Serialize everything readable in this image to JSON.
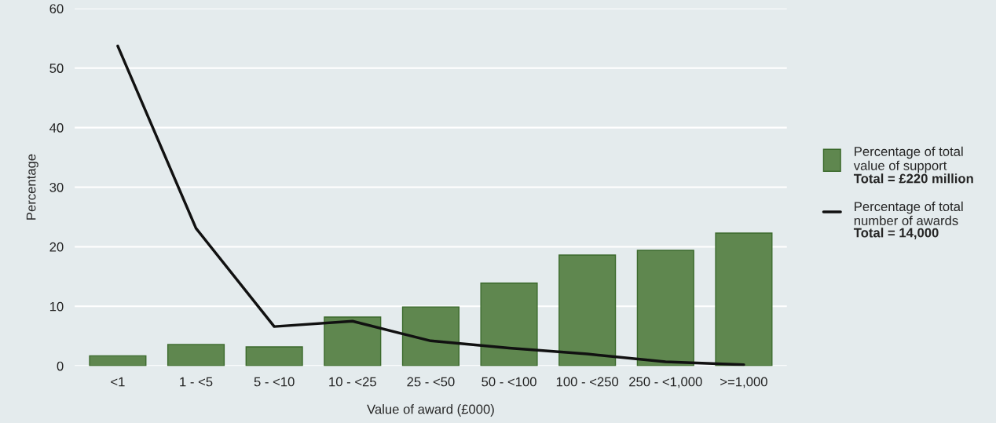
{
  "chart_data": {
    "type": "bar",
    "xlabel": "Value of award (£000)",
    "ylabel": "Percentage",
    "categories": [
      "<1",
      "1 - <5",
      "5 - <10",
      "10 - <25",
      "25 - <50",
      "50 - <100",
      "100 - <250",
      "250 - <1,000",
      ">=1,000"
    ],
    "series": [
      {
        "name": "Percentage of total\nvalue of support",
        "color": "#5f874f",
        "values": [
          1.7,
          3.6,
          3.2,
          8.2,
          9.9,
          13.9,
          18.6,
          19.4,
          22.3
        ]
      },
      {
        "name": "Percentage of total\nnumber of awards",
        "type": "line",
        "color": "#111111",
        "values": [
          53.7,
          23.1,
          6.6,
          7.5,
          4.2,
          3.0,
          2.0,
          0.7,
          0.2
        ]
      }
    ],
    "annotations": [
      "Total = £220 million",
      "Total = 14,000"
    ],
    "ylim": [
      0,
      60
    ],
    "yticks": [
      0,
      10,
      20,
      30,
      40,
      50,
      60
    ],
    "grid": "y",
    "legend": "right",
    "marker": "none",
    "line_style": "solid"
  }
}
